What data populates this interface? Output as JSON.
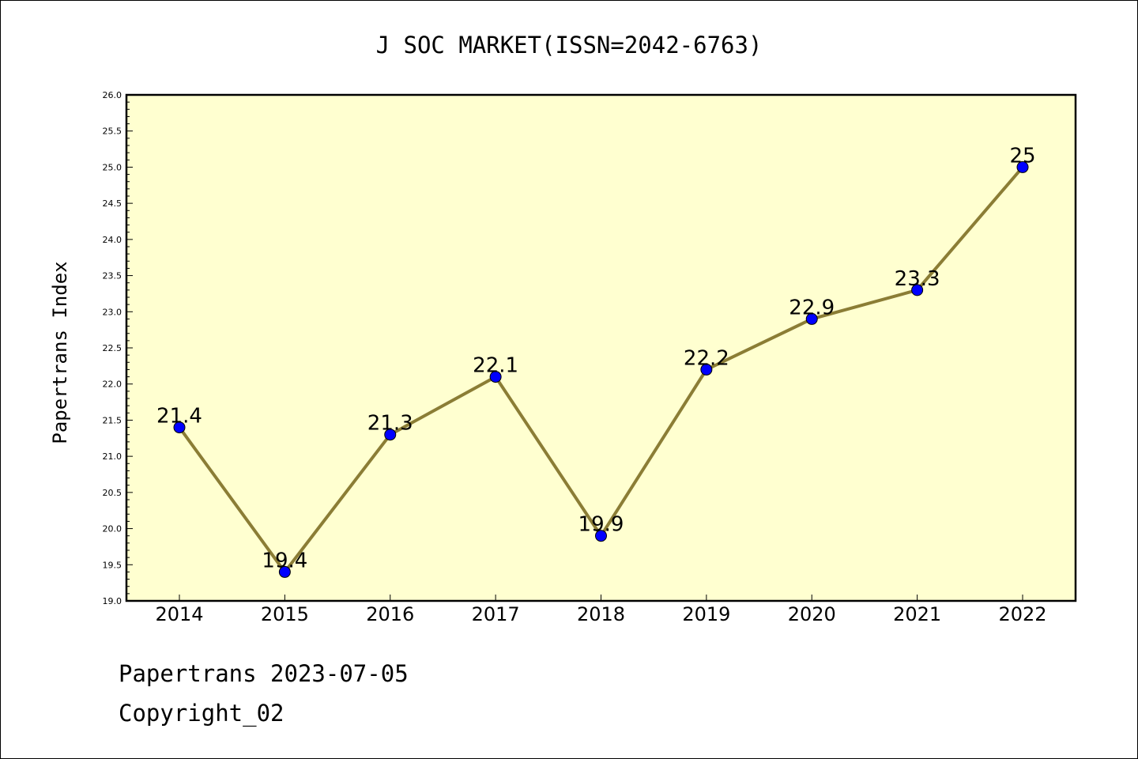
{
  "chart_data": {
    "type": "line",
    "title": "J SOC MARKET(ISSN=2042-6763)",
    "xlabel": "",
    "ylabel": "Papertrans Index",
    "categories": [
      "2014",
      "2015",
      "2016",
      "2017",
      "2018",
      "2019",
      "2020",
      "2021",
      "2022"
    ],
    "values": [
      21.4,
      19.4,
      21.3,
      22.1,
      19.9,
      22.2,
      22.9,
      23.3,
      25
    ],
    "data_labels": [
      "21.4",
      "19.4",
      "21.3",
      "22.1",
      "19.9",
      "22.2",
      "22.9",
      "23.3",
      "25"
    ],
    "ylim": [
      19.0,
      26.0
    ],
    "yticks": [
      "19.0",
      "19.5",
      "20.0",
      "20.5",
      "21.0",
      "21.5",
      "22.0",
      "22.5",
      "23.0",
      "23.5",
      "24.0",
      "24.5",
      "25.0",
      "25.5",
      "26.0"
    ],
    "grid": false,
    "colors": {
      "plot_background": "#ffffd0",
      "line": "#8b7d35",
      "marker": "#0000ff"
    }
  },
  "footer": {
    "line1": "Papertrans 2023-07-05",
    "line2": "Copyright_02"
  }
}
